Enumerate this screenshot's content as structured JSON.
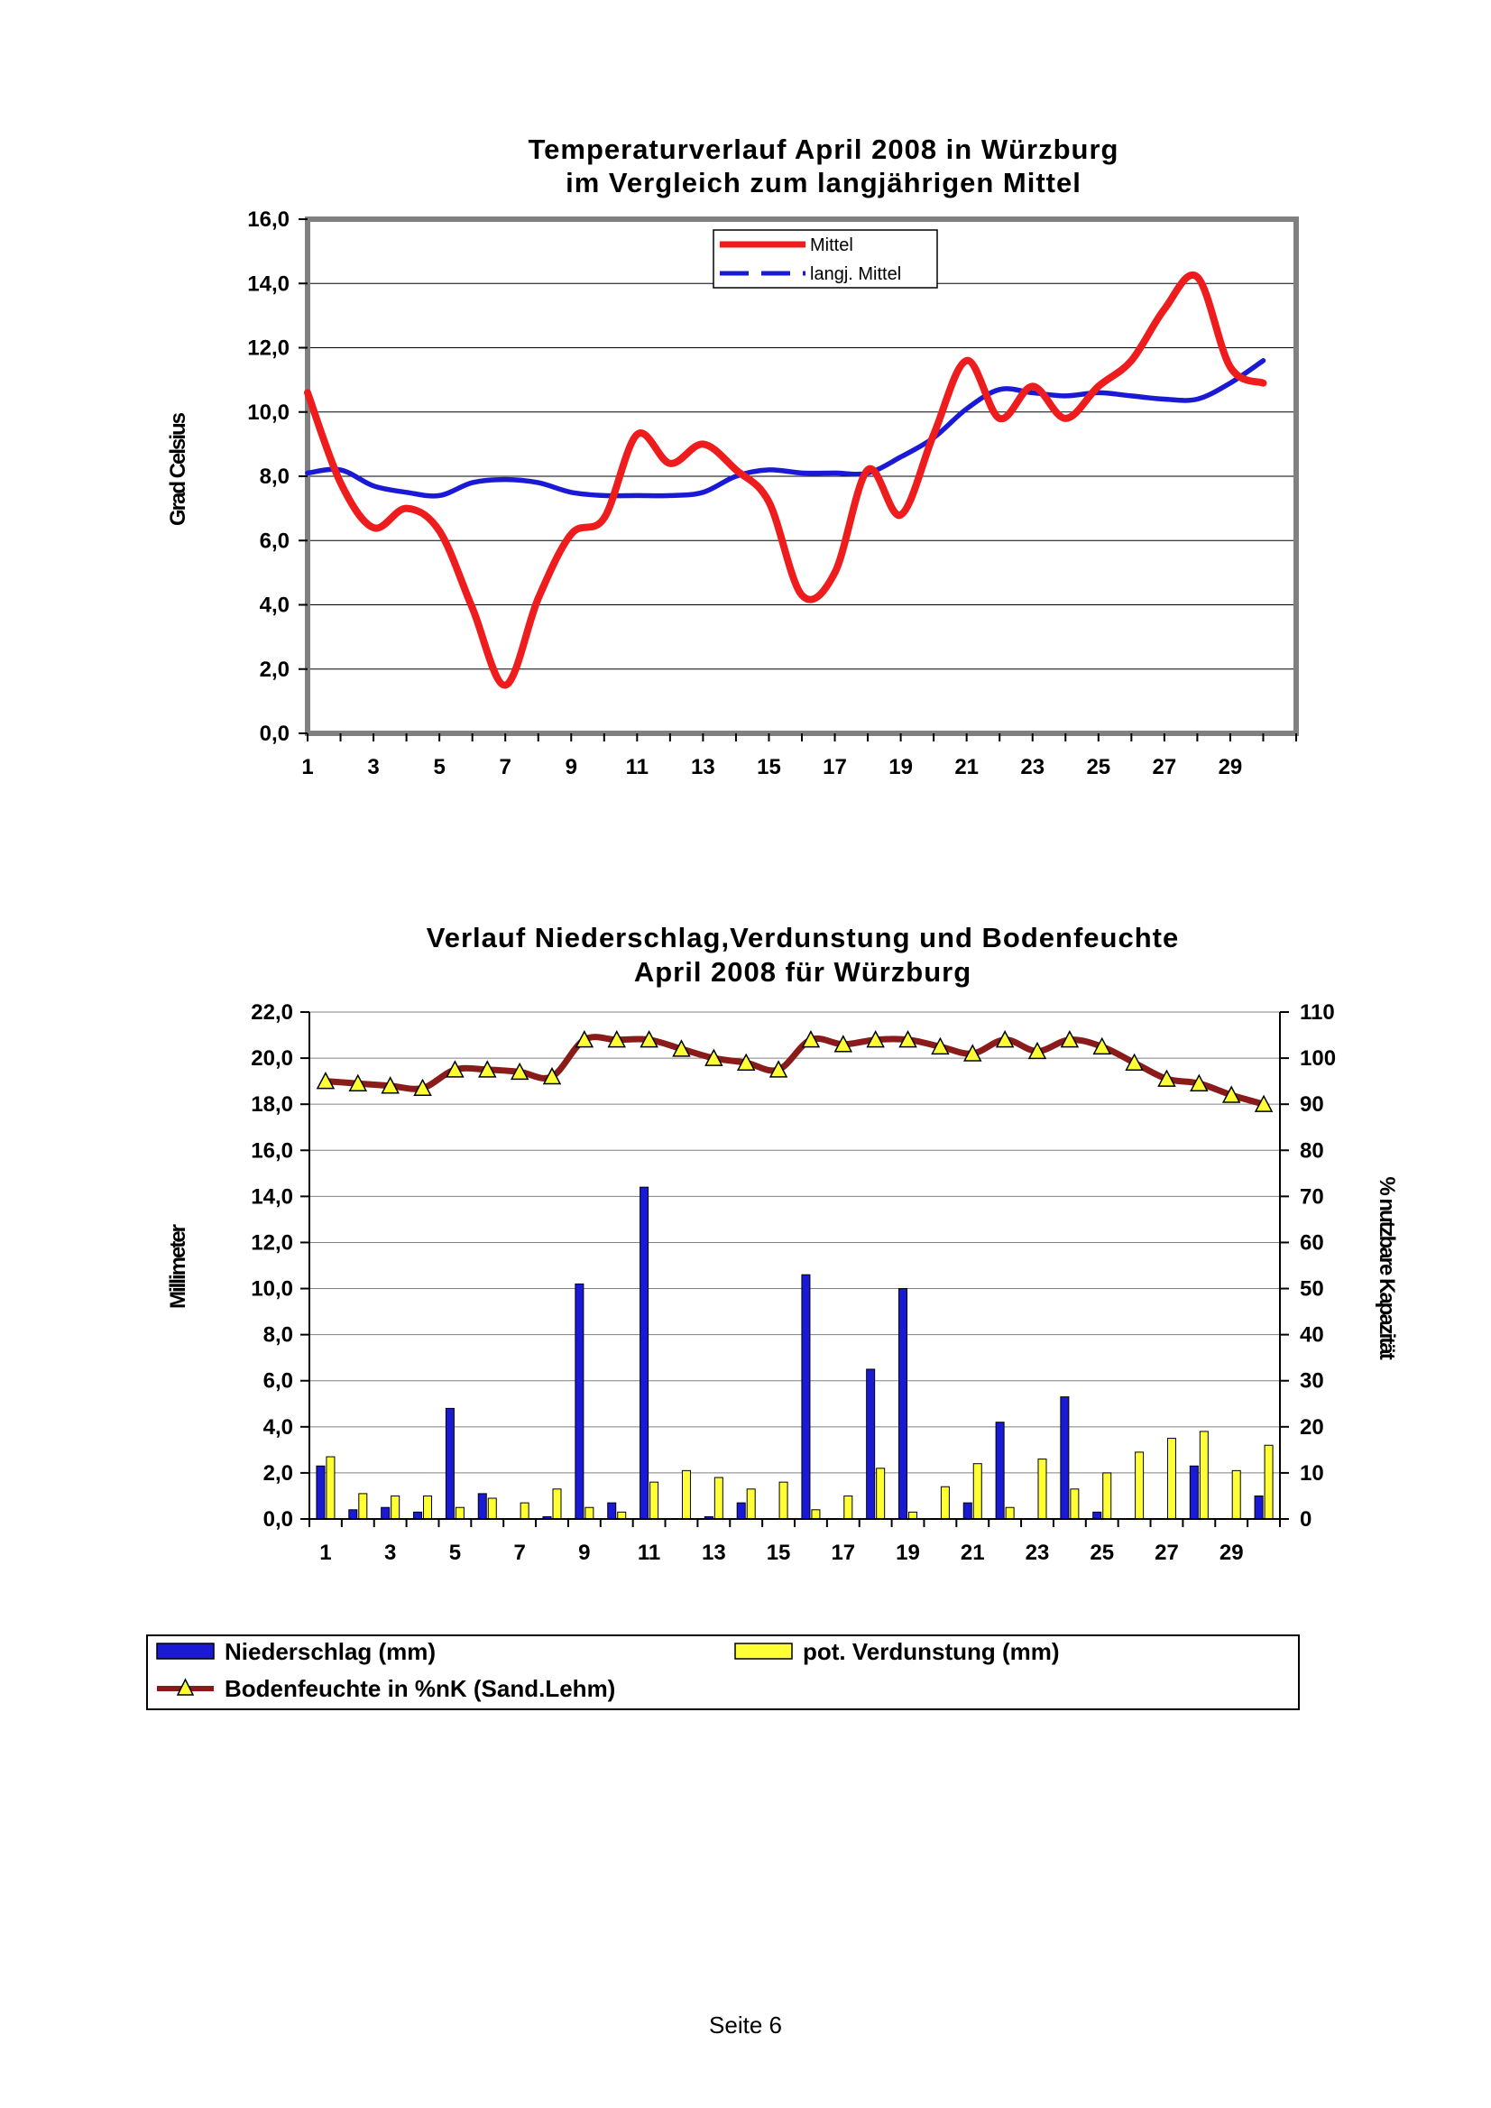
{
  "footer": "Seite 6",
  "chart_data": [
    {
      "type": "line",
      "title_lines": [
        "Temperaturverlauf April 2008 in Würzburg",
        "im Vergleich zum langjährigen Mittel"
      ],
      "ylabel": "Grad Celsius",
      "ylim": [
        0,
        16
      ],
      "yticks": [
        "0,0",
        "2,0",
        "4,0",
        "6,0",
        "8,0",
        "10,0",
        "12,0",
        "14,0",
        "16,0"
      ],
      "x": [
        1,
        2,
        3,
        4,
        5,
        6,
        7,
        8,
        9,
        10,
        11,
        12,
        13,
        14,
        15,
        16,
        17,
        18,
        19,
        20,
        21,
        22,
        23,
        24,
        25,
        26,
        27,
        28,
        29,
        30
      ],
      "xticks": [
        "1",
        "3",
        "5",
        "7",
        "9",
        "11",
        "13",
        "15",
        "17",
        "19",
        "21",
        "23",
        "25",
        "27",
        "29"
      ],
      "grid": true,
      "legend_position": "top-center",
      "series": [
        {
          "name": "Mittel",
          "color": "#ee1c1c",
          "style": "solid",
          "values": [
            10.6,
            7.8,
            6.4,
            7.0,
            6.3,
            3.9,
            1.5,
            4.2,
            6.2,
            6.7,
            9.3,
            8.4,
            9.0,
            8.2,
            7.2,
            4.3,
            5.0,
            8.2,
            6.8,
            9.3,
            11.6,
            9.8,
            10.8,
            9.8,
            10.8,
            11.6,
            13.2,
            14.2,
            11.4,
            10.9
          ]
        },
        {
          "name": "langj. Mittel",
          "color": "#1a1ad6",
          "style": "dashed",
          "values": [
            8.1,
            8.2,
            7.7,
            7.5,
            7.4,
            7.8,
            7.9,
            7.8,
            7.5,
            7.4,
            7.4,
            7.4,
            7.5,
            8.0,
            8.2,
            8.1,
            8.1,
            8.1,
            8.6,
            9.2,
            10.1,
            10.7,
            10.6,
            10.5,
            10.6,
            10.5,
            10.4,
            10.4,
            10.9,
            11.6
          ]
        }
      ]
    },
    {
      "type": "bar",
      "title_lines": [
        "Verlauf Niederschlag,Verdunstung und Bodenfeuchte",
        "April 2008 für Würzburg"
      ],
      "ylabel": "Millimeter",
      "y2label": "% nutzbare Kapazität",
      "ylim": [
        0,
        22
      ],
      "y2lim": [
        0,
        110
      ],
      "yticks": [
        "0,0",
        "2,0",
        "4,0",
        "6,0",
        "8,0",
        "10,0",
        "12,0",
        "14,0",
        "16,0",
        "18,0",
        "20,0",
        "22,0"
      ],
      "y2ticks": [
        "0",
        "10",
        "20",
        "30",
        "40",
        "50",
        "60",
        "70",
        "80",
        "90",
        "100",
        "110"
      ],
      "x": [
        1,
        2,
        3,
        4,
        5,
        6,
        7,
        8,
        9,
        10,
        11,
        12,
        13,
        14,
        15,
        16,
        17,
        18,
        19,
        20,
        21,
        22,
        23,
        24,
        25,
        26,
        27,
        28,
        29,
        30
      ],
      "xticks": [
        "1",
        "3",
        "5",
        "7",
        "9",
        "11",
        "13",
        "15",
        "17",
        "19",
        "21",
        "23",
        "25",
        "27",
        "29"
      ],
      "grid": true,
      "legend_position": "bottom",
      "series": [
        {
          "name": "Niederschlag (mm)",
          "color": "#1a1ad6",
          "axis": "left",
          "values": [
            2.3,
            0.4,
            0.5,
            0.3,
            4.8,
            1.1,
            0,
            0.1,
            10.2,
            0.7,
            14.4,
            0,
            0.1,
            0.7,
            0,
            10.6,
            0,
            6.5,
            10.0,
            0,
            0.7,
            4.2,
            0,
            5.3,
            0.3,
            0,
            0,
            2.3,
            0,
            1.0
          ]
        },
        {
          "name": "pot. Verdunstung (mm)",
          "color": "#ffff33",
          "axis": "left",
          "values": [
            2.7,
            1.1,
            1.0,
            1.0,
            0.5,
            0.9,
            0.7,
            1.3,
            0.5,
            0.3,
            1.6,
            2.1,
            1.8,
            1.3,
            1.6,
            0.4,
            1.0,
            2.2,
            0.3,
            1.4,
            2.4,
            0.5,
            2.6,
            1.3,
            2.0,
            2.9,
            3.5,
            3.8,
            2.1,
            3.2
          ]
        },
        {
          "name": "Bodenfeuchte in %nK (Sand.Lehm)",
          "color": "#8b1a1a",
          "marker_color": "#ffff33",
          "axis": "right",
          "values": [
            95,
            94.5,
            94,
            93.5,
            97.5,
            97.5,
            97,
            96,
            104,
            104,
            104,
            102,
            100,
            99,
            97.5,
            104,
            103,
            104,
            104,
            102.5,
            101,
            104,
            101.5,
            104,
            102.5,
            99,
            95.5,
            94.5,
            92,
            90
          ]
        }
      ]
    }
  ]
}
